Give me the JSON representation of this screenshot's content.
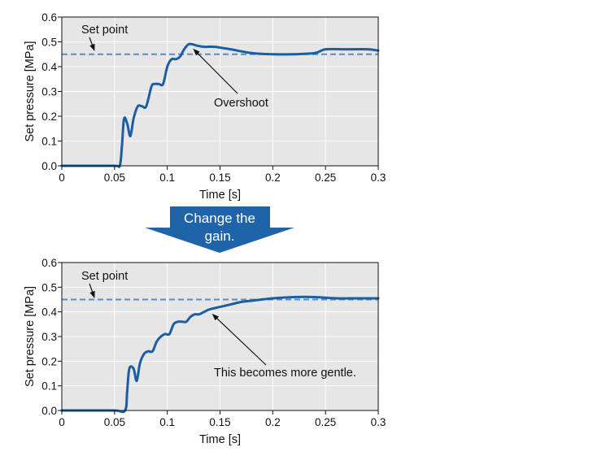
{
  "colors": {
    "plot_bg": "#e6e6e6",
    "grid": "#ffffff",
    "curve": "#1a5fa3",
    "setpoint": "#5b8cc4",
    "banner": "#1f63a8",
    "banner_text": "#ffffff"
  },
  "banner": {
    "line1": "Change the",
    "line2": "gain."
  },
  "chart_data": [
    {
      "type": "line",
      "xlabel": "Time [s]",
      "ylabel": "Set pressure [MPa]",
      "xlim": [
        0,
        0.3
      ],
      "ylim": [
        0,
        0.6
      ],
      "xticks": [
        "0",
        "0.05",
        "0.1",
        "0.15",
        "0.2",
        "0.25",
        "0.3"
      ],
      "yticks": [
        "0.0",
        "0.1",
        "0.2",
        "0.3",
        "0.4",
        "0.5",
        "0.6"
      ],
      "grid": true,
      "setpoint": {
        "label": "Set point",
        "value": 0.45
      },
      "annotation": {
        "text": "Overshoot",
        "target": [
          0.125,
          0.47
        ]
      },
      "series": [
        {
          "x": [
            0,
            0.02,
            0.05,
            0.055,
            0.057,
            0.059,
            0.062,
            0.065,
            0.068,
            0.072,
            0.076,
            0.08,
            0.085,
            0.088,
            0.092,
            0.096,
            0.1,
            0.104,
            0.108,
            0.112,
            0.116,
            0.12,
            0.124,
            0.128,
            0.135,
            0.145,
            0.16,
            0.18,
            0.2,
            0.22,
            0.24,
            0.25,
            0.27,
            0.29,
            0.3
          ],
          "y": [
            0,
            0,
            0,
            0.002,
            0.08,
            0.19,
            0.17,
            0.12,
            0.19,
            0.24,
            0.24,
            0.24,
            0.32,
            0.33,
            0.33,
            0.33,
            0.4,
            0.43,
            0.43,
            0.44,
            0.47,
            0.49,
            0.49,
            0.485,
            0.48,
            0.48,
            0.47,
            0.455,
            0.45,
            0.45,
            0.455,
            0.47,
            0.47,
            0.47,
            0.465
          ]
        }
      ]
    },
    {
      "type": "line",
      "xlabel": "Time [s]",
      "ylabel": "Set pressure [MPa]",
      "xlim": [
        0,
        0.3
      ],
      "ylim": [
        0,
        0.6
      ],
      "xticks": [
        "0",
        "0.05",
        "0.1",
        "0.15",
        "0.2",
        "0.25",
        "0.3"
      ],
      "yticks": [
        "0.0",
        "0.1",
        "0.2",
        "0.3",
        "0.4",
        "0.5",
        "0.6"
      ],
      "grid": true,
      "setpoint": {
        "label": "Set point",
        "value": 0.45
      },
      "annotation": {
        "text": "This becomes more gentle.",
        "target": [
          0.143,
          0.39
        ]
      },
      "series": [
        {
          "x": [
            0,
            0.02,
            0.05,
            0.06,
            0.062,
            0.064,
            0.068,
            0.071,
            0.074,
            0.078,
            0.082,
            0.086,
            0.09,
            0.094,
            0.098,
            0.102,
            0.106,
            0.11,
            0.114,
            0.118,
            0.122,
            0.126,
            0.13,
            0.135,
            0.14,
            0.15,
            0.16,
            0.17,
            0.18,
            0.2,
            0.22,
            0.24,
            0.26,
            0.28,
            0.3
          ],
          "y": [
            0,
            0,
            0,
            0,
            0.08,
            0.17,
            0.17,
            0.12,
            0.19,
            0.23,
            0.24,
            0.24,
            0.28,
            0.3,
            0.31,
            0.31,
            0.35,
            0.36,
            0.36,
            0.36,
            0.38,
            0.39,
            0.39,
            0.4,
            0.41,
            0.42,
            0.43,
            0.44,
            0.445,
            0.455,
            0.46,
            0.46,
            0.455,
            0.455,
            0.455
          ]
        }
      ]
    }
  ]
}
